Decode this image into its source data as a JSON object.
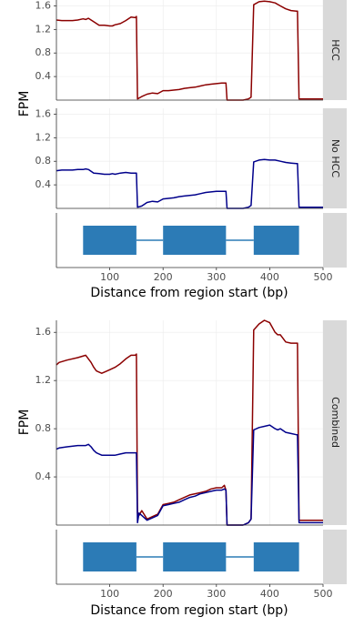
{
  "chart_data": [
    {
      "type": "line",
      "panel": "HCC",
      "strip": "HCC",
      "ylabel": "FPM",
      "ylim": [
        0,
        1.7
      ],
      "yticks": [
        "0.4",
        "0.8",
        "1.2",
        "1.6"
      ],
      "xlim": [
        0,
        500
      ],
      "series": [
        {
          "name": "HCC",
          "color": "#8b0000",
          "x": [
            0,
            10,
            30,
            40,
            50,
            55,
            60,
            65,
            70,
            80,
            90,
            100,
            105,
            110,
            120,
            130,
            140,
            148,
            150,
            152,
            160,
            170,
            180,
            190,
            200,
            210,
            220,
            230,
            240,
            250,
            260,
            270,
            280,
            290,
            300,
            310,
            318,
            320,
            325,
            330,
            340,
            350,
            360,
            365,
            370,
            380,
            390,
            400,
            410,
            420,
            430,
            440,
            450,
            452,
            455,
            460,
            480,
            500
          ],
          "y": [
            1.36,
            1.35,
            1.35,
            1.36,
            1.38,
            1.37,
            1.39,
            1.36,
            1.33,
            1.27,
            1.27,
            1.26,
            1.26,
            1.28,
            1.3,
            1.35,
            1.41,
            1.4,
            1.42,
            0.02,
            0.06,
            0.1,
            0.12,
            0.11,
            0.16,
            0.16,
            0.17,
            0.18,
            0.2,
            0.21,
            0.22,
            0.24,
            0.26,
            0.27,
            0.28,
            0.29,
            0.29,
            0.0,
            0.0,
            0.0,
            0.0,
            0.0,
            0.02,
            0.05,
            1.62,
            1.67,
            1.68,
            1.67,
            1.65,
            1.6,
            1.55,
            1.52,
            1.51,
            1.51,
            0.02,
            0.02,
            0.02,
            0.02
          ]
        }
      ]
    },
    {
      "type": "line",
      "panel": "No HCC",
      "strip": "No HCC",
      "ylabel": "FPM",
      "ylim": [
        0,
        1.7
      ],
      "yticks": [
        "0.4",
        "0.8",
        "1.2",
        "1.6"
      ],
      "xlim": [
        0,
        500
      ],
      "series": [
        {
          "name": "No HCC",
          "color": "#00008b",
          "x": [
            0,
            10,
            30,
            40,
            50,
            55,
            60,
            65,
            70,
            80,
            90,
            100,
            105,
            110,
            120,
            130,
            140,
            148,
            150,
            152,
            160,
            170,
            180,
            190,
            200,
            210,
            220,
            230,
            240,
            250,
            260,
            270,
            280,
            290,
            300,
            310,
            318,
            320,
            325,
            330,
            340,
            350,
            360,
            365,
            370,
            380,
            390,
            400,
            410,
            420,
            430,
            440,
            450,
            452,
            455,
            460,
            480,
            500
          ],
          "y": [
            0.64,
            0.65,
            0.65,
            0.66,
            0.66,
            0.67,
            0.66,
            0.63,
            0.6,
            0.59,
            0.58,
            0.58,
            0.59,
            0.58,
            0.6,
            0.61,
            0.6,
            0.6,
            0.6,
            0.02,
            0.04,
            0.1,
            0.12,
            0.11,
            0.16,
            0.17,
            0.18,
            0.2,
            0.21,
            0.22,
            0.23,
            0.25,
            0.27,
            0.28,
            0.29,
            0.29,
            0.29,
            0.0,
            0.0,
            0.0,
            0.0,
            0.0,
            0.02,
            0.05,
            0.79,
            0.82,
            0.83,
            0.82,
            0.82,
            0.8,
            0.78,
            0.77,
            0.76,
            0.76,
            0.02,
            0.02,
            0.02,
            0.02
          ]
        }
      ]
    },
    {
      "type": "line",
      "panel": "Combined",
      "strip": "Combined",
      "ylabel": "FPM",
      "ylim": [
        0,
        1.7
      ],
      "yticks": [
        "0.4",
        "0.8",
        "1.2",
        "1.6"
      ],
      "xlim": [
        0,
        500
      ],
      "series": [
        {
          "name": "HCC",
          "color": "#8b0000",
          "x": [
            0,
            5,
            20,
            40,
            55,
            60,
            65,
            70,
            75,
            80,
            85,
            90,
            100,
            110,
            120,
            130,
            140,
            148,
            150,
            152,
            155,
            160,
            170,
            180,
            190,
            200,
            210,
            220,
            230,
            240,
            250,
            260,
            270,
            280,
            290,
            300,
            310,
            315,
            318,
            320,
            325,
            330,
            340,
            350,
            360,
            365,
            370,
            380,
            390,
            400,
            410,
            415,
            420,
            430,
            440,
            450,
            452,
            455,
            460,
            480,
            500
          ],
          "y": [
            1.33,
            1.35,
            1.37,
            1.39,
            1.41,
            1.38,
            1.35,
            1.31,
            1.28,
            1.27,
            1.26,
            1.27,
            1.29,
            1.31,
            1.34,
            1.38,
            1.41,
            1.41,
            1.42,
            0.1,
            0.08,
            0.12,
            0.05,
            0.07,
            0.09,
            0.17,
            0.18,
            0.19,
            0.21,
            0.23,
            0.25,
            0.26,
            0.27,
            0.28,
            0.3,
            0.31,
            0.31,
            0.33,
            0.29,
            0.0,
            0.0,
            0.0,
            0.0,
            0.0,
            0.02,
            0.05,
            1.62,
            1.67,
            1.7,
            1.68,
            1.6,
            1.58,
            1.58,
            1.52,
            1.51,
            1.51,
            1.51,
            0.04,
            0.04,
            0.04,
            0.04
          ]
        },
        {
          "name": "No HCC",
          "color": "#00008b",
          "x": [
            0,
            5,
            20,
            40,
            55,
            60,
            65,
            70,
            75,
            80,
            85,
            90,
            100,
            110,
            120,
            130,
            140,
            148,
            150,
            152,
            155,
            160,
            170,
            180,
            190,
            200,
            210,
            220,
            230,
            240,
            250,
            260,
            270,
            280,
            290,
            300,
            310,
            315,
            318,
            320,
            325,
            330,
            340,
            350,
            360,
            365,
            370,
            380,
            390,
            400,
            410,
            415,
            420,
            430,
            440,
            450,
            452,
            455,
            460,
            480,
            500
          ],
          "y": [
            0.63,
            0.64,
            0.65,
            0.66,
            0.66,
            0.67,
            0.65,
            0.62,
            0.6,
            0.59,
            0.58,
            0.58,
            0.58,
            0.58,
            0.59,
            0.6,
            0.6,
            0.6,
            0.6,
            0.02,
            0.1,
            0.08,
            0.04,
            0.06,
            0.08,
            0.16,
            0.17,
            0.18,
            0.19,
            0.21,
            0.23,
            0.24,
            0.26,
            0.27,
            0.28,
            0.29,
            0.29,
            0.3,
            0.29,
            0.0,
            0.0,
            0.0,
            0.0,
            0.0,
            0.02,
            0.05,
            0.79,
            0.81,
            0.82,
            0.83,
            0.8,
            0.79,
            0.8,
            0.77,
            0.76,
            0.75,
            0.75,
            0.02,
            0.02,
            0.02,
            0.02
          ]
        }
      ]
    }
  ],
  "gene_track": {
    "xlabel": "Distance from region start (bp)",
    "xticks": [
      "100",
      "200",
      "300",
      "400",
      "500"
    ],
    "xlim": [
      0,
      500
    ],
    "color": "#2c7bb6",
    "exons": [
      [
        50,
        150
      ],
      [
        200,
        318
      ],
      [
        370,
        455
      ]
    ],
    "introns": [
      [
        150,
        200
      ],
      [
        318,
        370
      ]
    ]
  }
}
